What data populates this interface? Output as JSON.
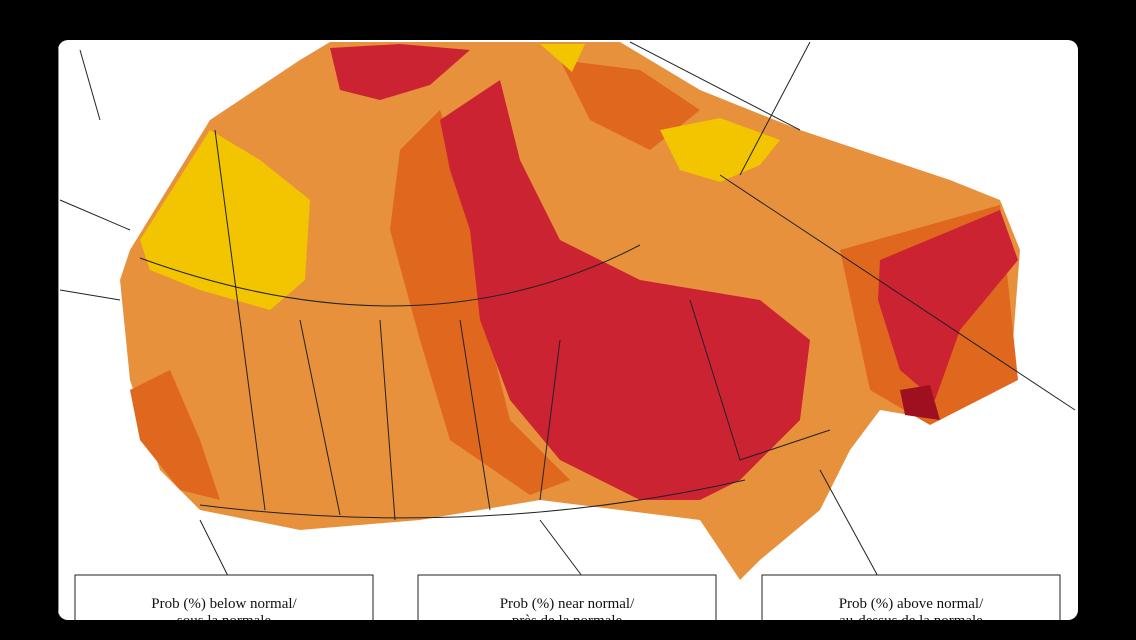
{
  "legend": [
    {
      "lines": [
        "Prob (%) below normal/",
        "sous la normale"
      ]
    },
    {
      "lines": [
        "Prob (%) near normal/",
        "près de la normale"
      ]
    },
    {
      "lines": [
        "Prob (%) above normal/",
        "au-dessus de la normale"
      ]
    }
  ]
}
